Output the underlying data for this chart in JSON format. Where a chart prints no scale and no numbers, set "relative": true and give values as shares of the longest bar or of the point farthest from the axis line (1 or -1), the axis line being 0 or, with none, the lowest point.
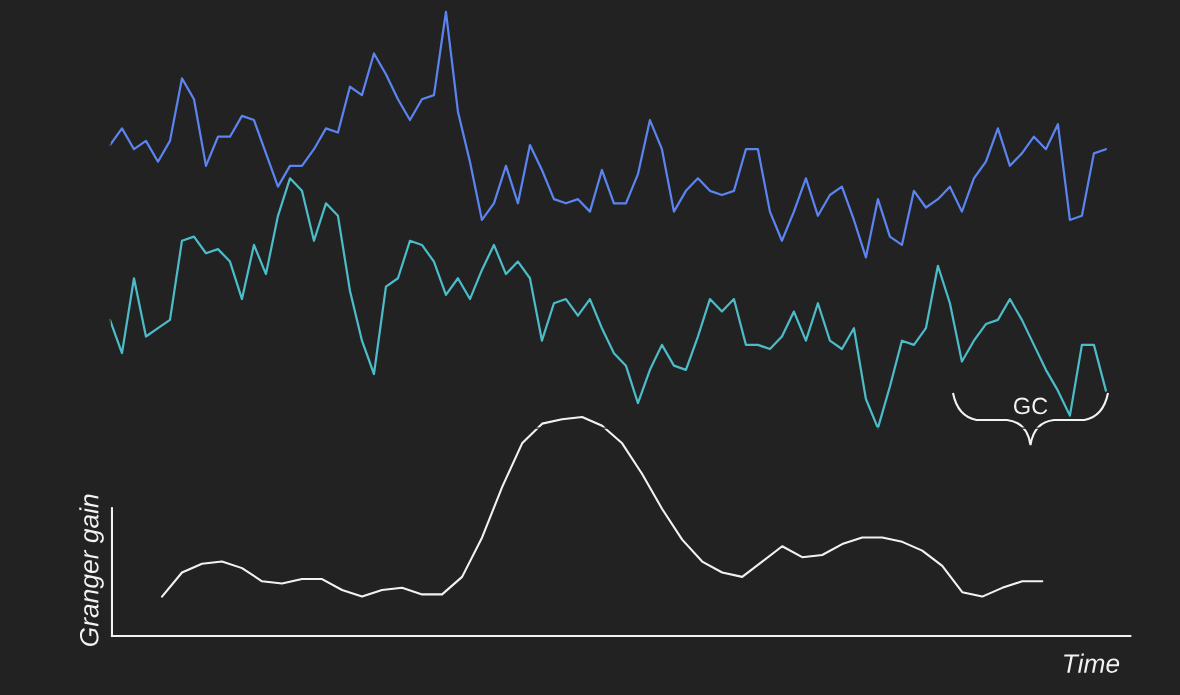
{
  "chart_data": [
    {
      "type": "line",
      "relative": true,
      "categories": [
        null,
        null,
        null,
        null,
        null,
        null,
        null,
        null,
        null,
        null,
        null,
        null,
        null,
        null,
        null,
        null,
        null,
        null,
        null,
        null,
        null,
        null,
        null,
        null,
        null,
        null,
        null,
        null,
        null,
        null,
        null,
        null,
        null,
        null,
        null,
        null,
        null,
        null,
        null,
        null,
        null,
        null,
        null,
        null,
        null,
        null,
        null,
        null,
        null,
        null,
        null,
        null,
        null,
        null,
        null,
        null,
        null,
        null,
        null,
        null,
        null,
        null,
        null,
        null,
        null,
        null,
        null,
        null,
        null,
        null,
        null,
        null,
        null,
        null,
        null,
        null,
        null,
        null,
        null,
        null,
        null,
        null,
        null,
        null
      ],
      "series": [
        {
          "color": "#5b84f0",
          "values": [
            0.68,
            0.72,
            0.67,
            0.69,
            0.64,
            0.69,
            0.84,
            0.79,
            0.63,
            0.7,
            0.7,
            0.75,
            0.74,
            0.66,
            0.58,
            0.63,
            0.63,
            0.67,
            0.72,
            0.71,
            0.82,
            0.8,
            0.9,
            0.85,
            0.79,
            0.74,
            0.79,
            0.8,
            1.0,
            0.76,
            0.64,
            0.5,
            0.54,
            0.63,
            0.54,
            0.68,
            0.62,
            0.55,
            0.54,
            0.55,
            0.52,
            0.62,
            0.54,
            0.54,
            0.61,
            0.74,
            0.67,
            0.52,
            0.57,
            0.6,
            0.57,
            0.56,
            0.57,
            0.67,
            0.67,
            0.52,
            0.45,
            0.52,
            0.6,
            0.51,
            0.56,
            0.58,
            0.5,
            0.41,
            0.55,
            0.46,
            0.44,
            0.57,
            0.53,
            0.55,
            0.58,
            0.52,
            0.6,
            0.64,
            0.72,
            0.63,
            0.66,
            0.7,
            0.67,
            0.73,
            0.5,
            0.51,
            0.66,
            0.67
          ]
        },
        {
          "color": "#4bbcc8",
          "values": [
            0.26,
            0.18,
            0.36,
            0.22,
            0.24,
            0.26,
            0.45,
            0.46,
            0.42,
            0.43,
            0.4,
            0.31,
            0.44,
            0.37,
            0.51,
            0.6,
            0.57,
            0.45,
            0.54,
            0.51,
            0.33,
            0.21,
            0.13,
            0.34,
            0.36,
            0.45,
            0.44,
            0.4,
            0.32,
            0.36,
            0.31,
            0.38,
            0.44,
            0.37,
            0.4,
            0.36,
            0.21,
            0.3,
            0.31,
            0.27,
            0.31,
            0.24,
            0.18,
            0.15,
            0.06,
            0.14,
            0.2,
            0.15,
            0.14,
            0.22,
            0.31,
            0.28,
            0.31,
            0.2,
            0.2,
            0.19,
            0.22,
            0.28,
            0.21,
            0.3,
            0.21,
            0.19,
            0.24,
            0.07,
            0.0,
            0.1,
            0.21,
            0.2,
            0.24,
            0.39,
            0.3,
            0.16,
            0.21,
            0.25,
            0.26,
            0.31,
            0.26,
            0.2,
            0.14,
            0.09,
            0.03,
            0.2,
            0.2,
            0.09
          ]
        }
      ],
      "annotations": [
        "GC"
      ]
    },
    {
      "type": "line",
      "relative": true,
      "xlabel": "Time",
      "ylabel": "Granger gain",
      "categories": [
        null,
        null,
        null,
        null,
        null,
        null,
        null,
        null,
        null,
        null,
        null,
        null,
        null,
        null,
        null,
        null,
        null,
        null,
        null,
        null,
        null,
        null,
        null,
        null,
        null,
        null,
        null,
        null,
        null,
        null,
        null,
        null,
        null,
        null,
        null,
        null,
        null,
        null,
        null,
        null,
        null,
        null,
        null,
        null,
        null
      ],
      "series": [
        {
          "color": "#f2f2f2",
          "values": [
            0.18,
            0.29,
            0.33,
            0.34,
            0.31,
            0.25,
            0.24,
            0.26,
            0.26,
            0.21,
            0.18,
            0.21,
            0.22,
            0.19,
            0.19,
            0.27,
            0.45,
            0.68,
            0.88,
            0.97,
            0.99,
            1.0,
            0.96,
            0.88,
            0.74,
            0.58,
            0.44,
            0.34,
            0.29,
            0.27,
            0.34,
            0.41,
            0.36,
            0.37,
            0.42,
            0.45,
            0.45,
            0.43,
            0.39,
            0.32,
            0.2,
            0.18,
            0.22,
            0.25,
            0.25
          ]
        }
      ],
      "legend": false
    }
  ]
}
